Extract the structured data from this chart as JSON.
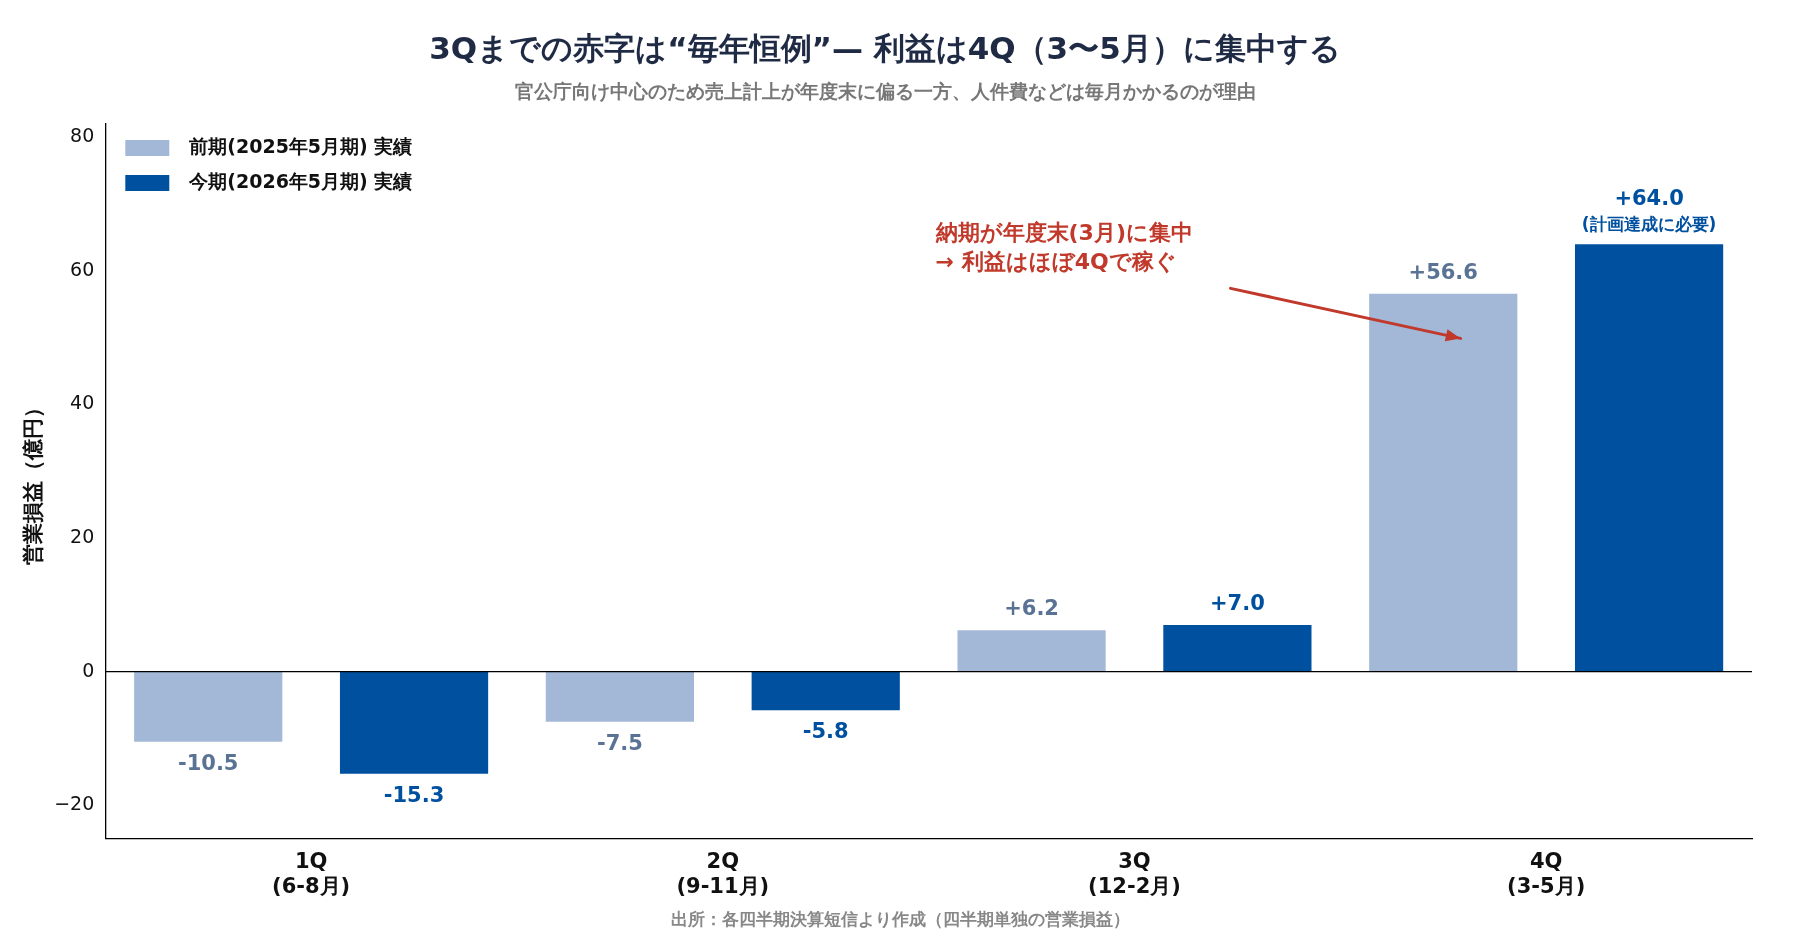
{
  "chart_data": {
    "type": "bar",
    "title": "3Qまでの赤字は“毎年恒例”— 利益は4Q（3〜5月）に集中する",
    "subtitle": "官公庁向け中心のため売上計上が年度末に偏る一方、人件費などは毎月かかるのが理由",
    "ylabel": "営業損益（億円）",
    "categories": [
      "1Q\n(6-8月)",
      "2Q\n(9-11月)",
      "3Q\n(12-2月)",
      "4Q\n(3-5月)"
    ],
    "series": [
      {
        "name": "前期(2025年5月期) 実績",
        "color": "#a3b8d6",
        "values": [
          -10.5,
          -7.5,
          6.2,
          56.6
        ],
        "value_labels": [
          "-10.5",
          "-7.5",
          "+6.2",
          "+56.6"
        ]
      },
      {
        "name": "今期(2026年5月期) 実績",
        "color": "#0050a0",
        "values": [
          -15.3,
          -5.8,
          7.0,
          64.0
        ],
        "value_labels": [
          "-15.3",
          "-5.8",
          "+7.0",
          "+64.0\n(計画達成に必要)"
        ]
      }
    ],
    "ylim": [
      -25,
      82
    ],
    "yticks": [
      {
        "value": -20,
        "label": "−20"
      },
      0,
      20,
      40,
      60,
      80
    ],
    "grid": false,
    "legend": "top left",
    "ref_lines": [
      {
        "axis": "y",
        "value": 0,
        "color": "#000000"
      }
    ],
    "annotations": [
      "納期が年度末(3月)に集中\n→ 利益はほぼ4Qで稼ぐ",
      "出所：各四半期決算短信より作成（四半期単独の営業損益）"
    ]
  }
}
